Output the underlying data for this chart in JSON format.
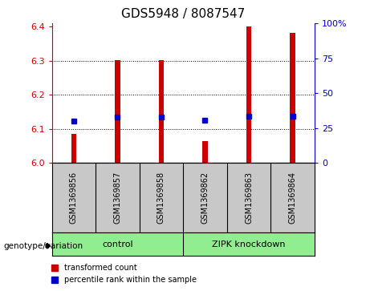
{
  "title": "GDS5948 / 8087547",
  "samples": [
    "GSM1369856",
    "GSM1369857",
    "GSM1369858",
    "GSM1369862",
    "GSM1369863",
    "GSM1369864"
  ],
  "red_bar_heights": [
    6.085,
    6.302,
    6.302,
    6.065,
    6.4,
    6.382
  ],
  "blue_marker_y": [
    6.122,
    6.135,
    6.135,
    6.125,
    6.136,
    6.136
  ],
  "ylim_left": [
    6.0,
    6.41
  ],
  "ylim_right": [
    0,
    100
  ],
  "yticks_left": [
    6.0,
    6.1,
    6.2,
    6.3,
    6.4
  ],
  "yticks_right": [
    0,
    25,
    50,
    75,
    100
  ],
  "yticklabels_right": [
    "0",
    "25",
    "50",
    "75",
    "100%"
  ],
  "group_box_color": "#C8C8C8",
  "group_label_color": "#90EE90",
  "bar_color": "#CC0000",
  "marker_color": "#0000CC",
  "left_axis_color": "#CC0000",
  "right_axis_color": "#0000CC",
  "title_fontsize": 11,
  "tick_fontsize": 8,
  "label_fontsize": 7,
  "legend_label_red": "transformed count",
  "legend_label_blue": "percentile rank within the sample",
  "genotype_label": "genotype/variation",
  "bar_width": 0.12,
  "marker_size": 5
}
